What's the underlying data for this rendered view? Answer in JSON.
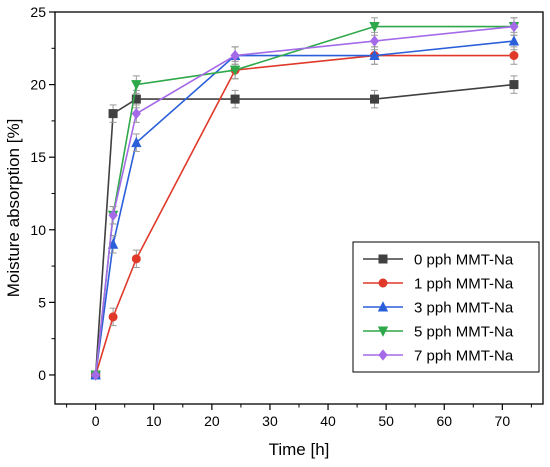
{
  "chart_data": {
    "type": "line",
    "xlabel": "Time [h]",
    "ylabel": "Moisture absorption [%]",
    "xlim": [
      -7,
      77
    ],
    "ylim": [
      -2,
      25
    ],
    "x_ticks": [
      0,
      10,
      20,
      30,
      40,
      50,
      60,
      70
    ],
    "y_ticks": [
      0,
      5,
      10,
      15,
      20,
      25
    ],
    "x": [
      0,
      3,
      7,
      24,
      48,
      72
    ],
    "grid": false,
    "legend_position": "bottom-right",
    "error_bar": 0.6,
    "series": [
      {
        "name": "0 pph MMT-Na",
        "color": "#404040",
        "marker": "square",
        "values": [
          0,
          18,
          19,
          19,
          19,
          20
        ]
      },
      {
        "name": "1 pph MMT-Na",
        "color": "#e0392a",
        "marker": "circle",
        "values": [
          0,
          4,
          8,
          21,
          22,
          22
        ]
      },
      {
        "name": "3 pph MMT-Na",
        "color": "#2b5fd9",
        "marker": "triangle-up",
        "values": [
          0,
          9,
          16,
          22,
          22,
          23
        ]
      },
      {
        "name": "5 pph MMT-Na",
        "color": "#2ea84a",
        "marker": "triangle-down",
        "values": [
          0,
          11,
          20,
          21,
          24,
          24
        ]
      },
      {
        "name": "7 pph MMT-Na",
        "color": "#a46ae8",
        "marker": "diamond",
        "values": [
          0,
          11,
          18,
          22,
          23,
          24
        ]
      }
    ]
  }
}
